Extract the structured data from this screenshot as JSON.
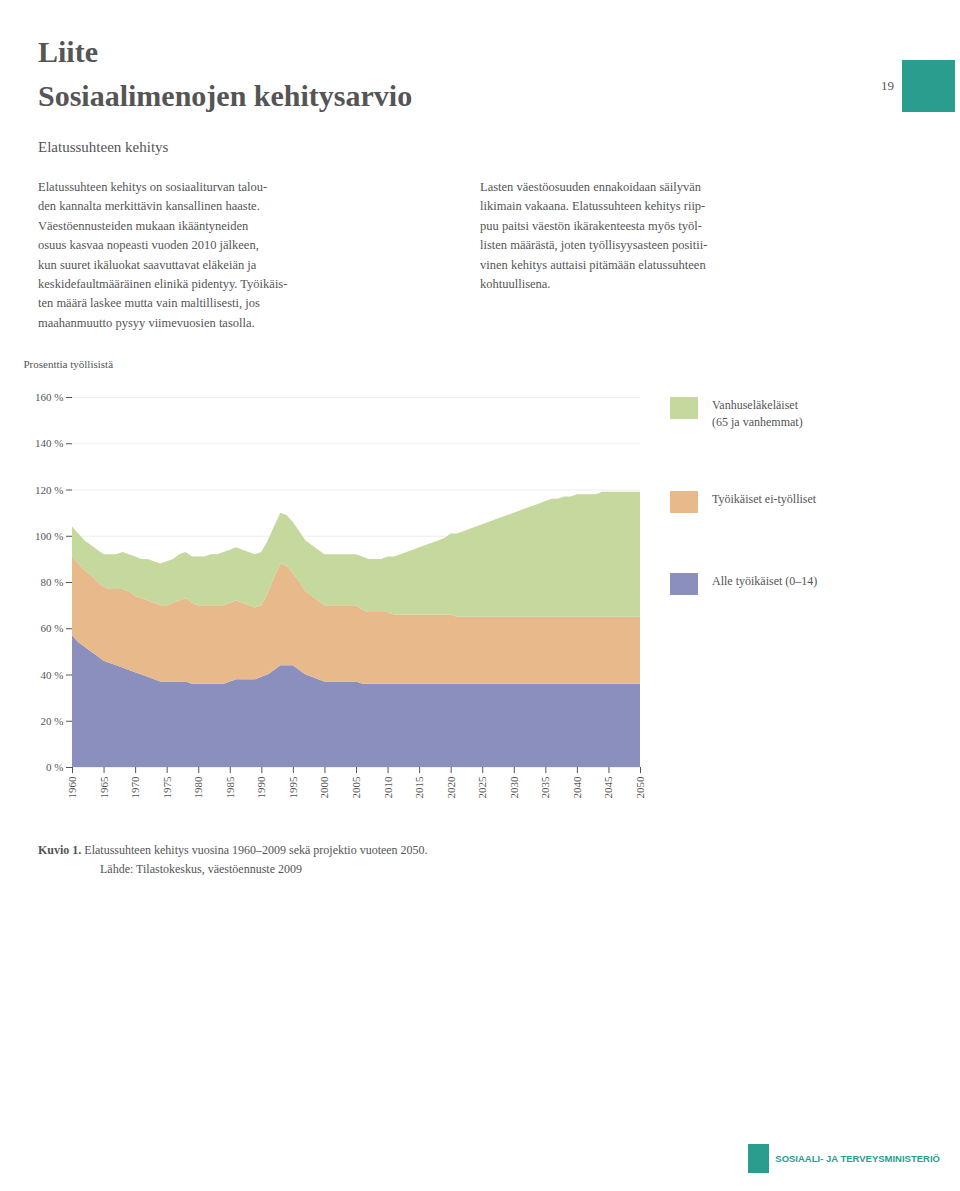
{
  "chart_data": {
    "type": "area",
    "stacked": true,
    "title": "Liite\nSosiaalimenojen kehitysarvio",
    "subtitle": "Elatussuhteen kehitys",
    "annotations": [
      "Elatussuhteen kehitys on sosiaaliturvan talou-\nden kannalta merkittävin kansallinen haaste.\nVäestöennusteiden mukaan ikääntyneiden\nosuus kasvaa nopeasti vuoden 2010 jälkeen,\nkun suuret ikäluokat saavuttavat eläkeiän ja\nkeskidefaultmääräinen elinikä pidentyy. Työikäis-\nten määrä laskee mutta vain maltillisesti, jos\nmaahanmuutto pysyy viimevuosien tasolla.",
      "Lasten väestöosuuden ennakoidaan säilyvän\nlikimain vakaana. Elatussuhteen kehitys riip-\npuu paitsi väestön ikärakenteesta myös työl-\nlisten määrästä, joten työllisyysasteen positii-\nvinen kehitys auttaisi pitämään elatussuhteen\nkohtuullisena.",
      "19",
      "Kuvio 1.",
      "Elatussuhteen kehitys vuosina 1960–2009 sekä projektio vuoteen 2050.",
      "Lähde:  Tilastokeskus, väestöennuste 2009",
      "SOSIAALI- JA TERVEYSMINISTERIÖ"
    ],
    "ylabel": "Prosenttia työllisistä",
    "x": [
      1960,
      1961,
      1962,
      1963,
      1964,
      1965,
      1966,
      1967,
      1968,
      1969,
      1970,
      1971,
      1972,
      1973,
      1974,
      1975,
      1976,
      1977,
      1978,
      1979,
      1980,
      1981,
      1982,
      1983,
      1984,
      1985,
      1986,
      1987,
      1988,
      1989,
      1990,
      1991,
      1992,
      1993,
      1994,
      1995,
      1996,
      1997,
      1998,
      1999,
      2000,
      2001,
      2002,
      2003,
      2004,
      2005,
      2006,
      2007,
      2008,
      2009,
      2010,
      2011,
      2012,
      2013,
      2014,
      2015,
      2016,
      2017,
      2018,
      2019,
      2020,
      2021,
      2022,
      2023,
      2024,
      2025,
      2026,
      2027,
      2028,
      2029,
      2030,
      2031,
      2032,
      2033,
      2034,
      2035,
      2036,
      2037,
      2038,
      2039,
      2040,
      2041,
      2042,
      2043,
      2044,
      2045,
      2046,
      2047,
      2048,
      2049,
      2050
    ],
    "series": [
      {
        "name": "Alle työikäiset (0–14)",
        "color": "#8b8fbe",
        "values": [
          57,
          54,
          52,
          50,
          48,
          46,
          45,
          44,
          43,
          42,
          41,
          40,
          39,
          38,
          37,
          37,
          37,
          37,
          37,
          36,
          36,
          36,
          36,
          36,
          36,
          37,
          38,
          38,
          38,
          38,
          39,
          40,
          42,
          44,
          44,
          44,
          42,
          40,
          39,
          38,
          37,
          37,
          37,
          37,
          37,
          37,
          36,
          36,
          36,
          36,
          36,
          36,
          36,
          36,
          36,
          36,
          36,
          36,
          36,
          36,
          36,
          36,
          36,
          36,
          36,
          36,
          36,
          36,
          36,
          36,
          36,
          36,
          36,
          36,
          36,
          36,
          36,
          36,
          36,
          36,
          36,
          36,
          36,
          36,
          36,
          36,
          36,
          36,
          36,
          36,
          36
        ]
      },
      {
        "name": "Työikäiset ei-työlliset",
        "color": "#e8b98a",
        "values": [
          34,
          34,
          33,
          33,
          32,
          32,
          32,
          33,
          34,
          34,
          33,
          33,
          33,
          33,
          33,
          33,
          34,
          35,
          36,
          35,
          34,
          34,
          34,
          34,
          34,
          34,
          34,
          33,
          32,
          31,
          31,
          35,
          40,
          44,
          43,
          40,
          38,
          36,
          35,
          34,
          33,
          33,
          33,
          33,
          33,
          33,
          32,
          31,
          31,
          31,
          31,
          30,
          30,
          30,
          30,
          30,
          30,
          30,
          30,
          30,
          30,
          29,
          29,
          29,
          29,
          29,
          29,
          29,
          29,
          29,
          29,
          29,
          29,
          29,
          29,
          29,
          29,
          29,
          29,
          29,
          29,
          29,
          29,
          29,
          29,
          29,
          29,
          29,
          29,
          29,
          29
        ]
      },
      {
        "name": "Vanhuseläkeläiset\n(65 ja vanhemmat)",
        "color": "#c5d89d",
        "values": [
          13,
          13,
          13,
          13,
          14,
          14,
          15,
          15,
          16,
          16,
          17,
          17,
          18,
          18,
          18,
          19,
          19,
          20,
          20,
          20,
          21,
          21,
          22,
          22,
          23,
          23,
          23,
          23,
          23,
          23,
          23,
          23,
          22,
          22,
          22,
          22,
          22,
          22,
          22,
          22,
          22,
          22,
          22,
          22,
          22,
          22,
          23,
          23,
          23,
          23,
          24,
          25,
          26,
          27,
          28,
          29,
          30,
          31,
          32,
          33,
          35,
          36,
          37,
          38,
          39,
          40,
          41,
          42,
          43,
          44,
          45,
          46,
          47,
          48,
          49,
          50,
          51,
          51,
          52,
          52,
          53,
          53,
          53,
          53,
          54,
          54,
          54,
          54,
          54,
          54,
          54
        ]
      }
    ],
    "xlim": [
      1960,
      2050
    ],
    "xticks": [
      1960,
      1965,
      1970,
      1975,
      1980,
      1985,
      1990,
      1995,
      2000,
      2005,
      2010,
      2015,
      2020,
      2025,
      2030,
      2035,
      2040,
      2045,
      2050
    ],
    "ylim": [
      0,
      160
    ],
    "yticks": [
      {
        "value": 0,
        "label": "0 %"
      },
      {
        "value": 20,
        "label": "20 %"
      },
      {
        "value": 40,
        "label": "40 %"
      },
      {
        "value": 60,
        "label": "60 %"
      },
      {
        "value": 80,
        "label": "80 %"
      },
      {
        "value": 100,
        "label": "100 %"
      },
      {
        "value": 120,
        "label": "120 %"
      },
      {
        "value": 140,
        "label": "140 %"
      },
      {
        "value": 160,
        "label": "160 %"
      }
    ],
    "grid": true,
    "legend": "right"
  }
}
